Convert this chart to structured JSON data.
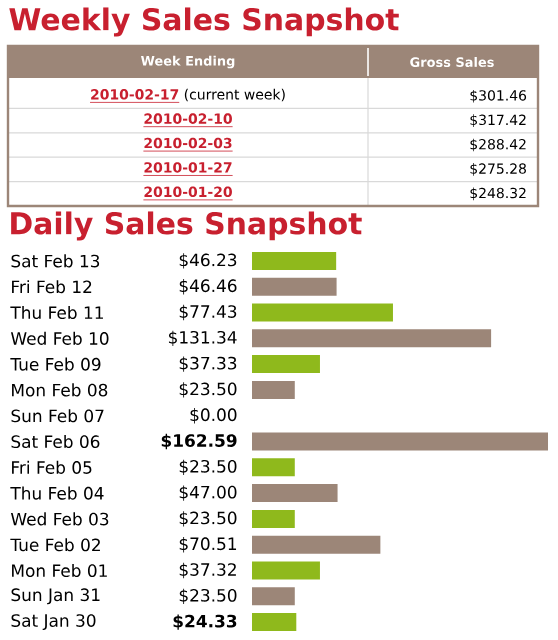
{
  "chart_data": [
    {
      "type": "other",
      "title": "Weekly Sales Snapshot",
      "xlabel": "Week Ending",
      "ylabel": "Gross Sales",
      "categories": [
        "2010-02-17",
        "2010-02-10",
        "2010-02-03",
        "2010-01-27",
        "2010-01-20"
      ],
      "value_labels": [
        "$301.46",
        "$317.42",
        "$288.42",
        "$275.28",
        "$248.32"
      ],
      "annotations": [
        "(current week)"
      ]
    },
    {
      "type": "bar",
      "orientation": "horizontal",
      "title": "Daily Sales Snapshot",
      "categories": [
        "Sat Feb 13",
        "Fri Feb 12",
        "Thu Feb 11",
        "Wed Feb 10",
        "Tue Feb 09",
        "Mon Feb 08",
        "Sun Feb 07",
        "Sat Feb 06",
        "Fri Feb 05",
        "Thu Feb 04",
        "Wed Feb 03",
        "Tue Feb 02",
        "Mon Feb 01",
        "Sun Jan 31",
        "Sat Jan 30"
      ],
      "values": [
        46.23,
        46.46,
        77.43,
        131.34,
        37.33,
        23.5,
        0.0,
        162.59,
        23.5,
        47.0,
        23.5,
        70.51,
        37.32,
        23.5,
        24.33
      ],
      "colors": [
        "#8fb91c",
        "#9c8678",
        "#8fb91c",
        "#9c8678",
        "#8fb91c",
        "#9c8678",
        "#8fb91c",
        "#9c8678",
        "#8fb91c",
        "#9c8678",
        "#8fb91c",
        "#9c8678",
        "#8fb91c",
        "#9c8678",
        "#8fb91c"
      ],
      "value_labels": [
        "$46.23",
        "$46.46",
        "$77.43",
        "$131.34",
        "$37.33",
        "$23.50",
        "$0.00",
        "**$162.59**",
        "$23.50",
        "$47.00",
        "$23.50",
        "$70.51",
        "$37.32",
        "$23.50",
        "**$24.33**"
      ]
    }
  ]
}
